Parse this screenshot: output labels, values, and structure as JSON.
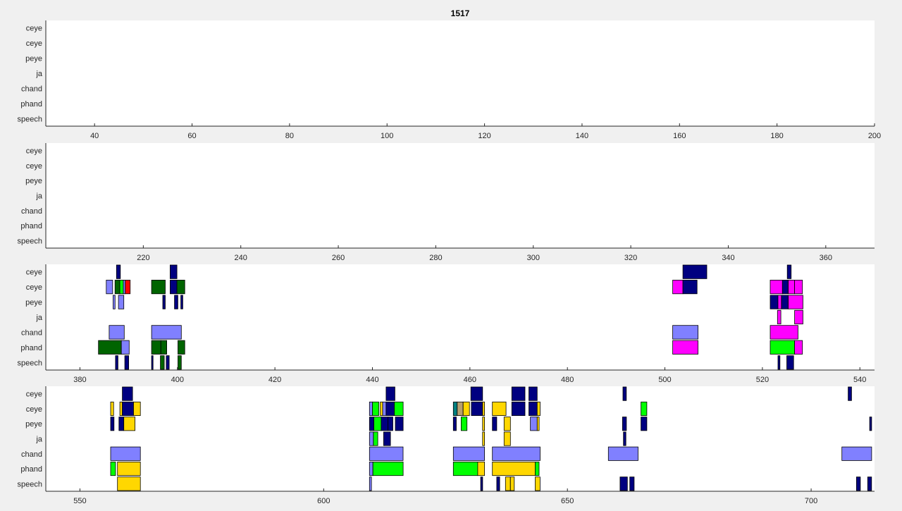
{
  "figure": {
    "title": "1517"
  },
  "colors": {
    "navy": "#000080",
    "lightblue": "#8080ff",
    "green": "#00ff00",
    "darkgreen": "#006400",
    "red": "#ff0000",
    "magenta": "#ff00ff",
    "gold": "#ffd700",
    "teal": "#008080",
    "tan": "#b8a070"
  },
  "chart_data": [
    {
      "type": "timeline",
      "title": "1517",
      "rows": [
        "ceye",
        "ceye",
        "peye",
        "ja",
        "chand",
        "phand",
        "speech"
      ],
      "xlim": [
        30,
        200
      ],
      "xticks": [
        40,
        60,
        80,
        100,
        120,
        140,
        160,
        180,
        200
      ],
      "intervals": []
    },
    {
      "type": "timeline",
      "title": "",
      "rows": [
        "ceye",
        "ceye",
        "peye",
        "ja",
        "chand",
        "phand",
        "speech"
      ],
      "xlim": [
        200,
        370
      ],
      "xticks": [
        220,
        240,
        260,
        280,
        300,
        320,
        340,
        360
      ],
      "intervals": []
    },
    {
      "type": "timeline",
      "title": "",
      "rows": [
        "ceye",
        "ceye",
        "peye",
        "ja",
        "chand",
        "phand",
        "speech"
      ],
      "xlim": [
        373,
        543
      ],
      "xticks": [
        380,
        400,
        420,
        440,
        460,
        480,
        500,
        520,
        540
      ],
      "intervals": [
        {
          "row": 0,
          "start": 387.5,
          "end": 388.3,
          "color": "navy"
        },
        {
          "row": 0,
          "start": 398.5,
          "end": 399.9,
          "color": "navy"
        },
        {
          "row": 0,
          "start": 503.7,
          "end": 508.6,
          "color": "navy"
        },
        {
          "row": 0,
          "start": 525.1,
          "end": 525.9,
          "color": "navy"
        },
        {
          "row": 1,
          "start": 385.4,
          "end": 386.7,
          "color": "lightblue"
        },
        {
          "row": 1,
          "start": 387.2,
          "end": 388.2,
          "color": "darkgreen"
        },
        {
          "row": 1,
          "start": 388.2,
          "end": 388.9,
          "color": "green"
        },
        {
          "row": 1,
          "start": 388.9,
          "end": 389.3,
          "color": "lightblue"
        },
        {
          "row": 1,
          "start": 389.3,
          "end": 390.3,
          "color": "red"
        },
        {
          "row": 1,
          "start": 394.7,
          "end": 397.5,
          "color": "darkgreen"
        },
        {
          "row": 1,
          "start": 398.5,
          "end": 399.9,
          "color": "navy"
        },
        {
          "row": 1,
          "start": 399.9,
          "end": 401.5,
          "color": "darkgreen"
        },
        {
          "row": 1,
          "start": 501.6,
          "end": 503.7,
          "color": "magenta"
        },
        {
          "row": 1,
          "start": 503.7,
          "end": 506.6,
          "color": "navy"
        },
        {
          "row": 1,
          "start": 521.6,
          "end": 524.1,
          "color": "magenta"
        },
        {
          "row": 1,
          "start": 524.1,
          "end": 525.3,
          "color": "navy"
        },
        {
          "row": 1,
          "start": 525.3,
          "end": 526.6,
          "color": "magenta"
        },
        {
          "row": 1,
          "start": 526.6,
          "end": 528.2,
          "color": "magenta"
        },
        {
          "row": 2,
          "start": 386.8,
          "end": 387.2,
          "color": "lightblue"
        },
        {
          "row": 2,
          "start": 387.9,
          "end": 389.0,
          "color": "lightblue"
        },
        {
          "row": 2,
          "start": 397.0,
          "end": 397.5,
          "color": "navy"
        },
        {
          "row": 2,
          "start": 399.4,
          "end": 400.1,
          "color": "navy"
        },
        {
          "row": 2,
          "start": 400.7,
          "end": 401.1,
          "color": "navy"
        },
        {
          "row": 2,
          "start": 521.6,
          "end": 523.2,
          "color": "navy"
        },
        {
          "row": 2,
          "start": 523.2,
          "end": 523.9,
          "color": "magenta"
        },
        {
          "row": 2,
          "start": 523.9,
          "end": 525.3,
          "color": "navy"
        },
        {
          "row": 2,
          "start": 525.3,
          "end": 528.3,
          "color": "magenta"
        },
        {
          "row": 3,
          "start": 523.1,
          "end": 523.8,
          "color": "magenta"
        },
        {
          "row": 3,
          "start": 526.6,
          "end": 528.3,
          "color": "magenta"
        },
        {
          "row": 4,
          "start": 386.0,
          "end": 389.1,
          "color": "lightblue"
        },
        {
          "row": 4,
          "start": 394.7,
          "end": 400.8,
          "color": "lightblue"
        },
        {
          "row": 4,
          "start": 501.6,
          "end": 506.8,
          "color": "lightblue"
        },
        {
          "row": 4,
          "start": 521.6,
          "end": 527.3,
          "color": "magenta"
        },
        {
          "row": 5,
          "start": 383.8,
          "end": 388.5,
          "color": "darkgreen"
        },
        {
          "row": 5,
          "start": 388.5,
          "end": 390.1,
          "color": "lightblue"
        },
        {
          "row": 5,
          "start": 394.7,
          "end": 396.6,
          "color": "darkgreen"
        },
        {
          "row": 5,
          "start": 396.6,
          "end": 397.8,
          "color": "darkgreen"
        },
        {
          "row": 5,
          "start": 400.1,
          "end": 401.5,
          "color": "darkgreen"
        },
        {
          "row": 5,
          "start": 501.6,
          "end": 506.8,
          "color": "magenta"
        },
        {
          "row": 5,
          "start": 521.6,
          "end": 526.6,
          "color": "green"
        },
        {
          "row": 5,
          "start": 526.6,
          "end": 528.2,
          "color": "magenta"
        },
        {
          "row": 6,
          "start": 387.3,
          "end": 387.8,
          "color": "navy"
        },
        {
          "row": 6,
          "start": 389.2,
          "end": 390.0,
          "color": "navy"
        },
        {
          "row": 6,
          "start": 394.7,
          "end": 395.0,
          "color": "navy"
        },
        {
          "row": 6,
          "start": 396.5,
          "end": 397.3,
          "color": "darkgreen"
        },
        {
          "row": 6,
          "start": 397.7,
          "end": 398.3,
          "color": "navy"
        },
        {
          "row": 6,
          "start": 400.1,
          "end": 400.8,
          "color": "darkgreen"
        },
        {
          "row": 6,
          "start": 523.2,
          "end": 523.6,
          "color": "navy"
        },
        {
          "row": 6,
          "start": 525.0,
          "end": 526.4,
          "color": "navy"
        }
      ]
    },
    {
      "type": "timeline",
      "title": "",
      "rows": [
        "ceye",
        "ceye",
        "peye",
        "ja",
        "chand",
        "phand",
        "speech"
      ],
      "xlim": [
        543,
        713
      ],
      "xticks": [
        550,
        600,
        650,
        700
      ],
      "intervals": [
        {
          "row": 0,
          "start": 558.7,
          "end": 560.8,
          "color": "navy"
        },
        {
          "row": 0,
          "start": 612.8,
          "end": 614.6,
          "color": "navy"
        },
        {
          "row": 0,
          "start": 630.2,
          "end": 632.6,
          "color": "navy"
        },
        {
          "row": 0,
          "start": 638.6,
          "end": 641.3,
          "color": "navy"
        },
        {
          "row": 0,
          "start": 642.1,
          "end": 643.8,
          "color": "navy"
        },
        {
          "row": 0,
          "start": 661.4,
          "end": 662.1,
          "color": "navy"
        },
        {
          "row": 0,
          "start": 707.6,
          "end": 708.3,
          "color": "navy"
        },
        {
          "row": 1,
          "start": 556.3,
          "end": 556.9,
          "color": "gold"
        },
        {
          "row": 1,
          "start": 558.2,
          "end": 558.7,
          "color": "gold"
        },
        {
          "row": 1,
          "start": 558.7,
          "end": 561.0,
          "color": "navy"
        },
        {
          "row": 1,
          "start": 561.0,
          "end": 562.4,
          "color": "gold"
        },
        {
          "row": 1,
          "start": 609.4,
          "end": 610.0,
          "color": "lightblue"
        },
        {
          "row": 1,
          "start": 610.0,
          "end": 611.3,
          "color": "green"
        },
        {
          "row": 1,
          "start": 611.6,
          "end": 612.1,
          "color": "gold"
        },
        {
          "row": 1,
          "start": 612.1,
          "end": 612.8,
          "color": "lightblue"
        },
        {
          "row": 1,
          "start": 612.8,
          "end": 614.5,
          "color": "navy"
        },
        {
          "row": 1,
          "start": 614.5,
          "end": 616.3,
          "color": "green"
        },
        {
          "row": 1,
          "start": 626.6,
          "end": 627.4,
          "color": "teal"
        },
        {
          "row": 1,
          "start": 627.4,
          "end": 628.6,
          "color": "tan"
        },
        {
          "row": 1,
          "start": 628.6,
          "end": 629.9,
          "color": "gold"
        },
        {
          "row": 1,
          "start": 630.3,
          "end": 632.6,
          "color": "navy"
        },
        {
          "row": 1,
          "start": 632.6,
          "end": 633.0,
          "color": "gold"
        },
        {
          "row": 1,
          "start": 634.6,
          "end": 637.4,
          "color": "gold"
        },
        {
          "row": 1,
          "start": 638.6,
          "end": 641.3,
          "color": "navy"
        },
        {
          "row": 1,
          "start": 642.1,
          "end": 643.8,
          "color": "navy"
        },
        {
          "row": 1,
          "start": 643.8,
          "end": 644.4,
          "color": "gold"
        },
        {
          "row": 1,
          "start": 665.1,
          "end": 666.3,
          "color": "green"
        },
        {
          "row": 2,
          "start": 556.3,
          "end": 557.0,
          "color": "navy"
        },
        {
          "row": 2,
          "start": 558.0,
          "end": 559.0,
          "color": "navy"
        },
        {
          "row": 2,
          "start": 559.0,
          "end": 561.3,
          "color": "gold"
        },
        {
          "row": 2,
          "start": 609.4,
          "end": 610.3,
          "color": "navy"
        },
        {
          "row": 2,
          "start": 610.3,
          "end": 611.8,
          "color": "green"
        },
        {
          "row": 2,
          "start": 611.8,
          "end": 613.2,
          "color": "navy"
        },
        {
          "row": 2,
          "start": 613.2,
          "end": 614.2,
          "color": "navy"
        },
        {
          "row": 2,
          "start": 614.7,
          "end": 616.3,
          "color": "navy"
        },
        {
          "row": 2,
          "start": 626.6,
          "end": 627.2,
          "color": "navy"
        },
        {
          "row": 2,
          "start": 628.2,
          "end": 629.4,
          "color": "green"
        },
        {
          "row": 2,
          "start": 632.6,
          "end": 633.0,
          "color": "gold"
        },
        {
          "row": 2,
          "start": 634.6,
          "end": 635.5,
          "color": "navy"
        },
        {
          "row": 2,
          "start": 637.0,
          "end": 638.3,
          "color": "gold"
        },
        {
          "row": 2,
          "start": 642.4,
          "end": 643.8,
          "color": "lightblue"
        },
        {
          "row": 2,
          "start": 643.8,
          "end": 644.2,
          "color": "gold"
        },
        {
          "row": 2,
          "start": 661.3,
          "end": 662.1,
          "color": "navy"
        },
        {
          "row": 2,
          "start": 665.1,
          "end": 666.3,
          "color": "navy"
        },
        {
          "row": 2,
          "start": 712.0,
          "end": 712.4,
          "color": "navy"
        },
        {
          "row": 3,
          "start": 609.4,
          "end": 610.2,
          "color": "lightblue"
        },
        {
          "row": 3,
          "start": 610.2,
          "end": 611.1,
          "color": "green"
        },
        {
          "row": 3,
          "start": 612.3,
          "end": 613.7,
          "color": "navy"
        },
        {
          "row": 3,
          "start": 632.6,
          "end": 633.0,
          "color": "gold"
        },
        {
          "row": 3,
          "start": 637.0,
          "end": 638.3,
          "color": "gold"
        },
        {
          "row": 3,
          "start": 661.5,
          "end": 662.0,
          "color": "navy"
        },
        {
          "row": 4,
          "start": 556.3,
          "end": 562.4,
          "color": "lightblue"
        },
        {
          "row": 4,
          "start": 609.4,
          "end": 616.3,
          "color": "lightblue"
        },
        {
          "row": 4,
          "start": 626.6,
          "end": 633.0,
          "color": "lightblue"
        },
        {
          "row": 4,
          "start": 634.6,
          "end": 644.4,
          "color": "lightblue"
        },
        {
          "row": 4,
          "start": 658.4,
          "end": 664.5,
          "color": "lightblue"
        },
        {
          "row": 4,
          "start": 706.3,
          "end": 712.4,
          "color": "lightblue"
        },
        {
          "row": 5,
          "start": 556.3,
          "end": 557.3,
          "color": "green"
        },
        {
          "row": 5,
          "start": 557.7,
          "end": 562.4,
          "color": "gold"
        },
        {
          "row": 5,
          "start": 609.4,
          "end": 610.1,
          "color": "lightblue"
        },
        {
          "row": 5,
          "start": 610.1,
          "end": 616.3,
          "color": "green"
        },
        {
          "row": 5,
          "start": 626.6,
          "end": 631.6,
          "color": "green"
        },
        {
          "row": 5,
          "start": 631.6,
          "end": 633.0,
          "color": "gold"
        },
        {
          "row": 5,
          "start": 634.6,
          "end": 643.4,
          "color": "gold"
        },
        {
          "row": 5,
          "start": 643.4,
          "end": 644.2,
          "color": "green"
        },
        {
          "row": 6,
          "start": 557.7,
          "end": 562.4,
          "color": "gold"
        },
        {
          "row": 6,
          "start": 609.4,
          "end": 609.8,
          "color": "lightblue"
        },
        {
          "row": 6,
          "start": 632.2,
          "end": 632.6,
          "color": "navy"
        },
        {
          "row": 6,
          "start": 635.5,
          "end": 636.1,
          "color": "navy"
        },
        {
          "row": 6,
          "start": 637.3,
          "end": 638.3,
          "color": "gold"
        },
        {
          "row": 6,
          "start": 638.3,
          "end": 639.1,
          "color": "gold"
        },
        {
          "row": 6,
          "start": 643.4,
          "end": 644.4,
          "color": "gold"
        },
        {
          "row": 6,
          "start": 660.8,
          "end": 662.3,
          "color": "navy"
        },
        {
          "row": 6,
          "start": 662.8,
          "end": 663.7,
          "color": "navy"
        },
        {
          "row": 6,
          "start": 709.3,
          "end": 710.1,
          "color": "navy"
        },
        {
          "row": 6,
          "start": 711.6,
          "end": 712.4,
          "color": "navy"
        }
      ]
    }
  ]
}
